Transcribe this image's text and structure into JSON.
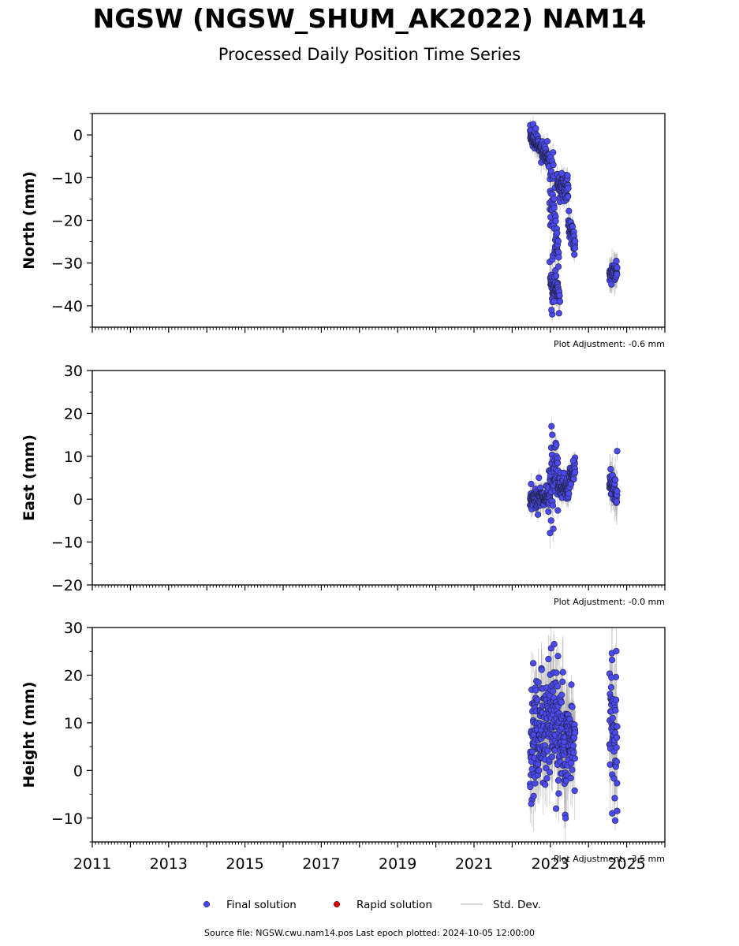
{
  "title": "NGSW (NGSW_SHUM_AK2022) NAM14",
  "subtitle": "Processed Daily Position Time Series",
  "source_text": "Source file: NGSW.cwu.nam14.pos  Last epoch plotted: 2024-10-05 12:00:00",
  "legend": [
    {
      "label": "Final solution",
      "color": "#4444ee",
      "kind": "marker"
    },
    {
      "label": "Rapid solution",
      "color": "#dd0000",
      "kind": "marker"
    },
    {
      "label": "Std. Dev.",
      "color": "#cccccc",
      "kind": "line"
    }
  ],
  "colors": {
    "final": "#4a4af0",
    "final_edge": "#222244",
    "stddev": "#b0b0b0"
  },
  "chart_data": [
    {
      "type": "scatter",
      "ylabel": "North (mm)",
      "ylim": [
        -45,
        5
      ],
      "yticks": [
        0,
        -10,
        -20,
        -30,
        -40
      ],
      "ytick_labels": [
        "0",
        "−10",
        "−20",
        "−30",
        "−40"
      ],
      "xlim": [
        2011.0,
        2026.0
      ],
      "adjustment": "Plot Adjustment: -0.6 mm",
      "segments": [
        {
          "start": 2022.47,
          "end": 2022.98,
          "startVal": 0,
          "endVal": -6,
          "spread": 2,
          "err": 2
        },
        {
          "start": 2022.98,
          "end": 2023.22,
          "startVal": -12,
          "endVal": -28,
          "spread": 14,
          "err": 2.5
        },
        {
          "start": 2023.0,
          "end": 2023.25,
          "startVal": -34,
          "endVal": -38,
          "spread": 3,
          "err": 2.5
        },
        {
          "start": 2023.18,
          "end": 2023.47,
          "startVal": -11,
          "endVal": -13,
          "spread": 3,
          "err": 2
        },
        {
          "start": 2023.47,
          "end": 2023.65,
          "startVal": -21,
          "endVal": -25,
          "spread": 3,
          "err": 2
        },
        {
          "start": 2024.55,
          "end": 2024.75,
          "startVal": -33,
          "endVal": -32,
          "spread": 2,
          "err": 3
        }
      ],
      "points": [
        {
          "x": 2022.55,
          "y": 2.5
        },
        {
          "x": 2022.62,
          "y": 1.5
        },
        {
          "x": 2022.92,
          "y": -1.5
        },
        {
          "x": 2023.05,
          "y": -42
        },
        {
          "x": 2023.03,
          "y": -41
        },
        {
          "x": 2023.1,
          "y": -39
        },
        {
          "x": 2023.15,
          "y": -33
        },
        {
          "x": 2023.3,
          "y": -9
        },
        {
          "x": 2023.45,
          "y": -9.5
        },
        {
          "x": 2023.63,
          "y": -28
        },
        {
          "x": 2024.73,
          "y": -29.5
        },
        {
          "x": 2024.6,
          "y": -35
        }
      ]
    },
    {
      "type": "scatter",
      "ylabel": "East (mm)",
      "ylim": [
        -20,
        30
      ],
      "yticks": [
        30,
        20,
        10,
        0,
        -10,
        -20
      ],
      "ytick_labels": [
        "30",
        "20",
        "10",
        "0",
        "−10",
        "−20"
      ],
      "xlim": [
        2011.0,
        2026.0
      ],
      "adjustment": "Plot Adjustment: -0.0 mm",
      "segments": [
        {
          "start": 2022.47,
          "end": 2022.95,
          "startVal": 0,
          "endVal": 0.5,
          "spread": 2.5,
          "err": 2
        },
        {
          "start": 2022.95,
          "end": 2023.2,
          "startVal": 2,
          "endVal": 9,
          "spread": 8,
          "err": 2.5
        },
        {
          "start": 2023.2,
          "end": 2023.47,
          "startVal": 3,
          "endVal": 2,
          "spread": 3,
          "err": 2
        },
        {
          "start": 2023.47,
          "end": 2023.65,
          "startVal": 4,
          "endVal": 7,
          "spread": 3,
          "err": 2
        },
        {
          "start": 2024.55,
          "end": 2024.75,
          "startVal": 4,
          "endVal": 1,
          "spread": 3,
          "err": 4
        }
      ],
      "points": [
        {
          "x": 2023.03,
          "y": 17
        },
        {
          "x": 2023.05,
          "y": 15
        },
        {
          "x": 2023.02,
          "y": -5
        },
        {
          "x": 2022.7,
          "y": 5
        },
        {
          "x": 2024.75,
          "y": 11.2
        },
        {
          "x": 2024.58,
          "y": 7
        },
        {
          "x": 2023.6,
          "y": 9
        }
      ]
    },
    {
      "type": "scatter",
      "ylabel": "Height (mm)",
      "ylim": [
        -15,
        30
      ],
      "yticks": [
        30,
        20,
        10,
        0,
        -10
      ],
      "ytick_labels": [
        "30",
        "20",
        "10",
        "0",
        "−10"
      ],
      "xlim": [
        2011.0,
        2026.0
      ],
      "xticks": [
        2011,
        2013,
        2015,
        2017,
        2019,
        2021,
        2023,
        2025
      ],
      "adjustment": "Plot Adjustment: -3.5 mm",
      "segments": [
        {
          "start": 2022.47,
          "end": 2022.95,
          "startVal": 7,
          "endVal": 12,
          "spread": 14,
          "err": 6
        },
        {
          "start": 2022.95,
          "end": 2023.47,
          "startVal": 12,
          "endVal": 4,
          "spread": 14,
          "err": 7
        },
        {
          "start": 2023.47,
          "end": 2023.65,
          "startVal": 5,
          "endVal": 8,
          "spread": 10,
          "err": 6
        },
        {
          "start": 2024.55,
          "end": 2024.75,
          "startVal": 12,
          "endVal": 8,
          "spread": 14,
          "err": 7
        }
      ],
      "points": [
        {
          "x": 2022.5,
          "y": -7
        },
        {
          "x": 2022.55,
          "y": 22.5
        },
        {
          "x": 2023.1,
          "y": 26.5
        },
        {
          "x": 2023.15,
          "y": -8
        },
        {
          "x": 2023.4,
          "y": -10
        },
        {
          "x": 2023.2,
          "y": 24
        },
        {
          "x": 2024.62,
          "y": -9
        },
        {
          "x": 2024.7,
          "y": -10.5
        },
        {
          "x": 2024.75,
          "y": -8.5
        },
        {
          "x": 2024.6,
          "y": 19.5
        },
        {
          "x": 2023.55,
          "y": 18
        }
      ]
    }
  ]
}
